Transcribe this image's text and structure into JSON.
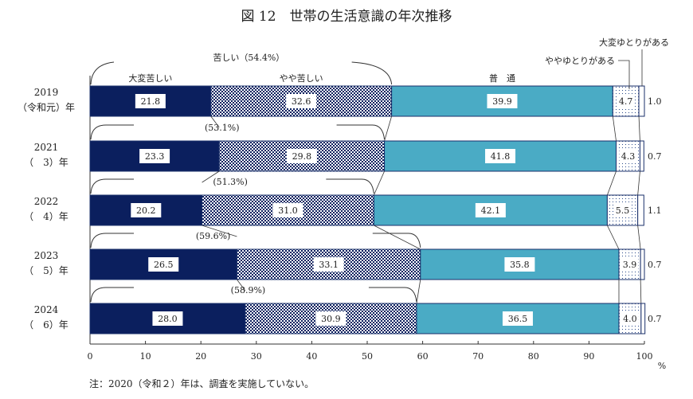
{
  "chart_data": {
    "type": "bar",
    "orientation": "horizontal",
    "stacked": true,
    "title": "図 12　世帯の生活意識の年次推移",
    "categories": [
      {
        "year": "2019",
        "era": "（令和元）年"
      },
      {
        "year": "2021",
        "era": "（　3）年"
      },
      {
        "year": "2022",
        "era": "（　4）年"
      },
      {
        "year": "2023",
        "era": "（　5）年"
      },
      {
        "year": "2024",
        "era": "（　6）年"
      }
    ],
    "series": [
      {
        "name": "大変苦しい",
        "values": [
          21.8,
          23.3,
          20.2,
          26.5,
          28.0
        ],
        "color": "#0b1f5e",
        "pattern": "solid"
      },
      {
        "name": "やや苦しい",
        "values": [
          32.6,
          29.8,
          31.0,
          33.1,
          30.9
        ],
        "color": "#0b1f5e",
        "pattern": "checkered"
      },
      {
        "name": "普　通",
        "values": [
          39.9,
          41.8,
          42.1,
          35.8,
          36.5
        ],
        "color": "#4aabc5",
        "pattern": "solid"
      },
      {
        "name": "ややゆとりがある",
        "values": [
          4.7,
          4.3,
          5.5,
          3.9,
          4.0
        ],
        "color": "#2a4a8a",
        "pattern": "dotted"
      },
      {
        "name": "大変ゆとりがある",
        "values": [
          1.0,
          0.7,
          1.1,
          0.7,
          0.7
        ],
        "color": "#ffffff",
        "pattern": "solid"
      }
    ],
    "group_label": "苦しい",
    "group_totals": [
      "（54.4%）",
      "(53.1%)",
      "(51.3%)",
      "(59.6%)",
      "(58.9%)"
    ],
    "xlim": [
      0,
      100
    ],
    "xticks": [
      "0",
      "10",
      "20",
      "30",
      "40",
      "50",
      "60",
      "70",
      "80",
      "90",
      "100"
    ],
    "xunit": "%",
    "grid": false,
    "legend": "labels above first bar"
  },
  "note": "注：2020（令和２）年は、調査を実施していない。"
}
